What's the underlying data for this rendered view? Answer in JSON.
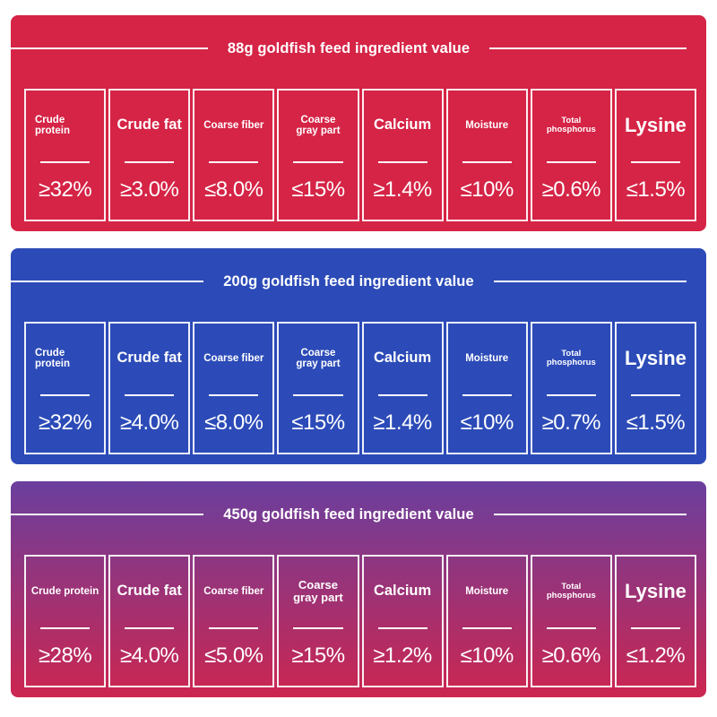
{
  "colors": {
    "panel_red": "#d52446",
    "panel_blue": "#2c4bb8",
    "panel_gradient_top": "#6a3f9e",
    "panel_gradient_bottom": "#cc2650",
    "text": "#ffffff"
  },
  "panels": [
    {
      "title": "88g goldfish feed ingredient value",
      "items": [
        {
          "label": "Crude protein",
          "value": "≥32%"
        },
        {
          "label": "Crude fat",
          "value": "≥3.0%"
        },
        {
          "label": "Coarse fiber",
          "value": "≤8.0%"
        },
        {
          "label": "Coarse gray part",
          "value": "≤15%"
        },
        {
          "label": "Calcium",
          "value": "≥1.4%"
        },
        {
          "label": "Moisture",
          "value": "≤10%"
        },
        {
          "label": "Total phosphorus",
          "value": "≥0.6%"
        },
        {
          "label": "Lysine",
          "value": "≤1.5%"
        }
      ]
    },
    {
      "title": "200g goldfish feed ingredient value",
      "items": [
        {
          "label": "Crude protein",
          "value": "≥32%"
        },
        {
          "label": "Crude fat",
          "value": "≥4.0%"
        },
        {
          "label": "Coarse fiber",
          "value": "≤8.0%"
        },
        {
          "label": "Coarse gray part",
          "value": "≤15%"
        },
        {
          "label": "Calcium",
          "value": "≥1.4%"
        },
        {
          "label": "Moisture",
          "value": "≤10%"
        },
        {
          "label": "Total phosphorus",
          "value": "≥0.7%"
        },
        {
          "label": "Lysine",
          "value": "≤1.5%"
        }
      ]
    },
    {
      "title": "450g goldfish feed ingredient value",
      "items": [
        {
          "label": "Crude protein",
          "value": "≥28%"
        },
        {
          "label": "Crude fat",
          "value": "≥4.0%"
        },
        {
          "label": "Coarse fiber",
          "value": "≤5.0%"
        },
        {
          "label": "Coarse gray part",
          "value": "≥15%"
        },
        {
          "label": "Calcium",
          "value": "≥1.2%"
        },
        {
          "label": "Moisture",
          "value": "≤10%"
        },
        {
          "label": "Total phosphorus",
          "value": "≥0.6%"
        },
        {
          "label": "Lysine",
          "value": "≤1.2%"
        }
      ]
    }
  ]
}
